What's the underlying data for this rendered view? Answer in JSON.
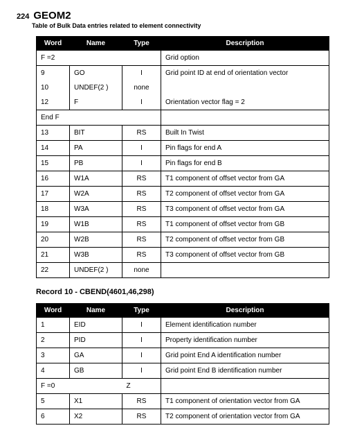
{
  "page_number": "224",
  "section_title": "GEOM2",
  "section_subtitle": "Table of Bulk Data entries related to element connectivity",
  "table1": {
    "headers": {
      "word": "Word",
      "name": "Name",
      "type": "Type",
      "desc": "Description"
    },
    "group_f2": {
      "label": "F =2",
      "right": "Grid option"
    },
    "r9": {
      "word": "9",
      "name": "GO",
      "type": "I",
      "desc": "Grid point ID at end of orientation vector"
    },
    "r10": {
      "word": "10",
      "name": "UNDEF(2 )",
      "type": "none",
      "desc": ""
    },
    "r12": {
      "word": "12",
      "name": "F",
      "type": "I",
      "desc": "Orientation vector flag = 2"
    },
    "endf": {
      "label": "End F"
    },
    "r13": {
      "word": "13",
      "name": "BIT",
      "type": "RS",
      "desc": "Built In Twist"
    },
    "r14": {
      "word": "14",
      "name": "PA",
      "type": "I",
      "desc": "Pin flags for end A"
    },
    "r15": {
      "word": "15",
      "name": "PB",
      "type": "I",
      "desc": "Pin flags for end B"
    },
    "r16": {
      "word": "16",
      "name": "W1A",
      "type": "RS",
      "desc": "T1 component of offset vector from GA"
    },
    "r17": {
      "word": "17",
      "name": "W2A",
      "type": "RS",
      "desc": "T2 component of offset vector from GA"
    },
    "r18": {
      "word": "18",
      "name": "W3A",
      "type": "RS",
      "desc": "T3 component of offset vector from GA"
    },
    "r19": {
      "word": "19",
      "name": "W1B",
      "type": "RS",
      "desc": "T1 component of offset vector from GB"
    },
    "r20": {
      "word": "20",
      "name": "W2B",
      "type": "RS",
      "desc": "T2 component of offset vector from GB"
    },
    "r21": {
      "word": "21",
      "name": "W3B",
      "type": "RS",
      "desc": "T3 component of offset vector from GB"
    },
    "r22": {
      "word": "22",
      "name": "UNDEF(2 )",
      "type": "none",
      "desc": ""
    }
  },
  "record10_title": "Record 10 - CBEND(4601,46,298)",
  "table2": {
    "headers": {
      "word": "Word",
      "name": "Name",
      "type": "Type",
      "desc": "Description"
    },
    "r1": {
      "word": "1",
      "name": "EID",
      "type": "I",
      "desc": "Element identification number"
    },
    "r2": {
      "word": "2",
      "name": "PID",
      "type": "I",
      "desc": "Property identification number"
    },
    "r3": {
      "word": "3",
      "name": "GA",
      "type": "I",
      "desc": "Grid point End A identification number"
    },
    "r4": {
      "word": "4",
      "name": "GB",
      "type": "I",
      "desc": "Grid point End B identification number"
    },
    "group_f0": {
      "label": "F =0",
      "right": "Z"
    },
    "r5": {
      "word": "5",
      "name": "X1",
      "type": "RS",
      "desc": "T1 component of orientation vector from GA"
    },
    "r6": {
      "word": "6",
      "name": "X2",
      "type": "RS",
      "desc": "T2 component of orientation vector from GA"
    }
  }
}
